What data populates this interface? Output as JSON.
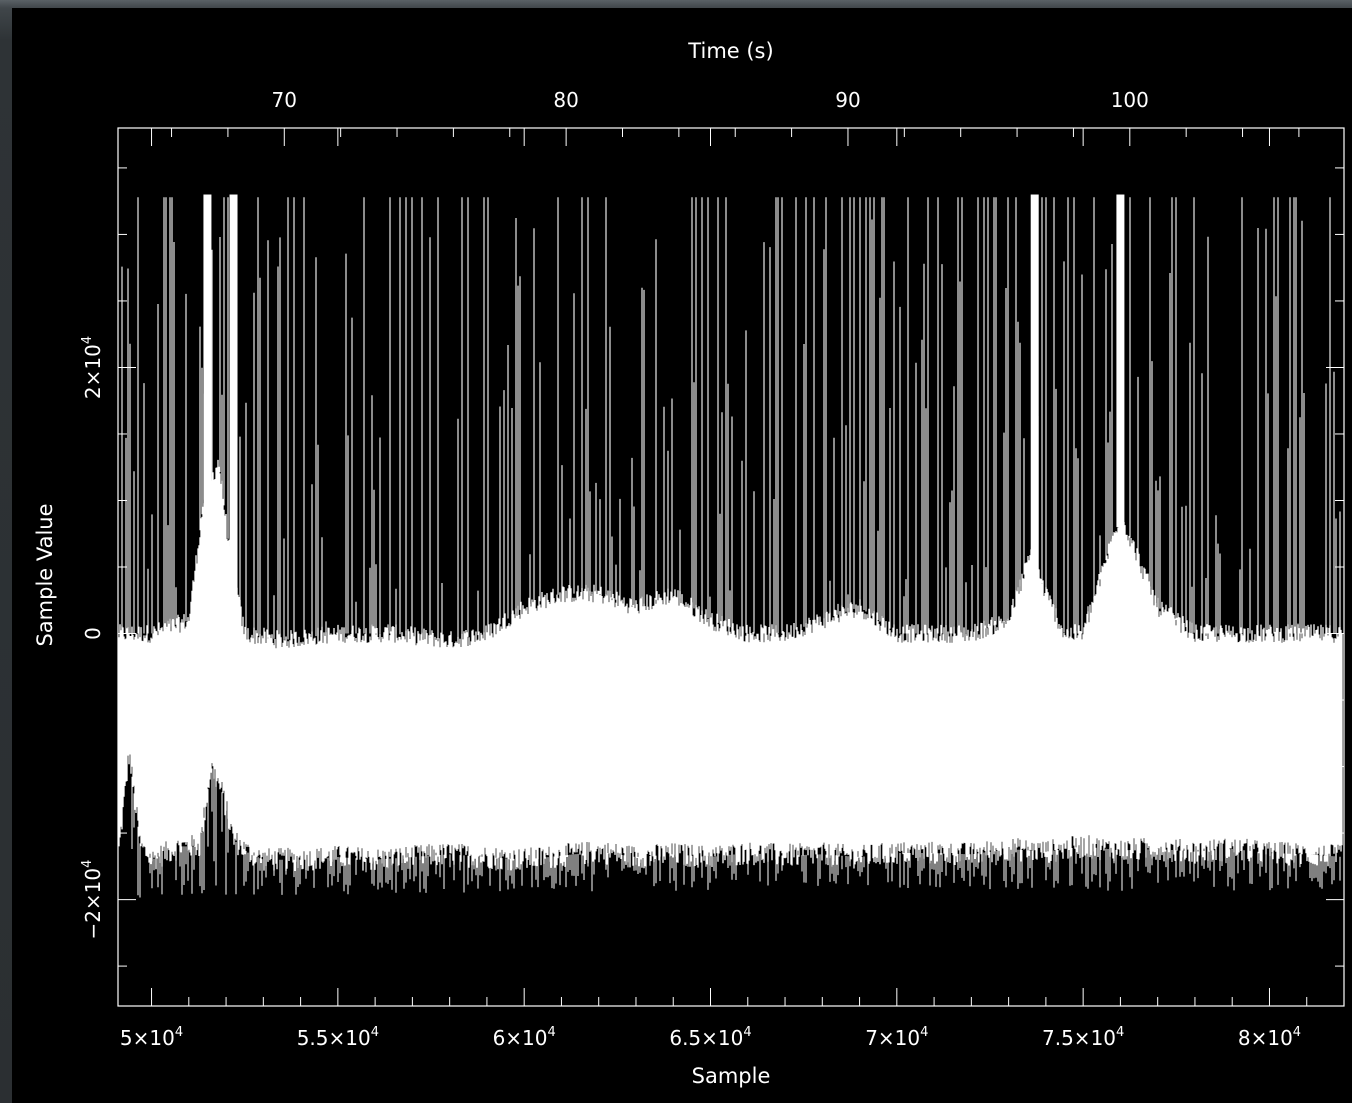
{
  "colors": {
    "background": "#000000",
    "foreground": "#ffffff",
    "frame": "#3c4246"
  },
  "chart_data": {
    "type": "line",
    "title": "",
    "xlabel": "Sample",
    "x2label": "Time (s)",
    "ylabel": "Sample Value",
    "xlim": [
      49100,
      82000
    ],
    "x2lim": [
      64.1,
      107.6
    ],
    "ylim": [
      -28000,
      38000
    ],
    "x_ticks": [
      {
        "value": 50000,
        "mantissa": "5",
        "exp": "4"
      },
      {
        "value": 55000,
        "mantissa": "5.5",
        "exp": "4"
      },
      {
        "value": 60000,
        "mantissa": "6",
        "exp": "4"
      },
      {
        "value": 65000,
        "mantissa": "6.5",
        "exp": "4"
      },
      {
        "value": 70000,
        "mantissa": "7",
        "exp": "4"
      },
      {
        "value": 75000,
        "mantissa": "7.5",
        "exp": "4"
      },
      {
        "value": 80000,
        "mantissa": "8",
        "exp": "4"
      }
    ],
    "x2_ticks": [
      {
        "value": 70,
        "label": "70"
      },
      {
        "value": 80,
        "label": "80"
      },
      {
        "value": 90,
        "label": "90"
      },
      {
        "value": 100,
        "label": "100"
      }
    ],
    "y_ticks": [
      {
        "value": -20000,
        "prefix": "−2",
        "exp": "4"
      },
      {
        "value": 0,
        "prefix": "0",
        "exp": ""
      },
      {
        "value": 20000,
        "prefix": "2",
        "exp": "4"
      }
    ],
    "series": [
      {
        "clip_max": 32800,
        "lower_envelope": [
          [
            49100,
            -17000
          ],
          [
            49400,
            -9000
          ],
          [
            49700,
            -16000
          ],
          [
            50000,
            -17000
          ],
          [
            50400,
            -16500
          ],
          [
            50800,
            -16000
          ],
          [
            51300,
            -16000
          ],
          [
            51600,
            -10000
          ],
          [
            51900,
            -12000
          ],
          [
            52200,
            -15500
          ],
          [
            52600,
            -16500
          ],
          [
            53000,
            -17000
          ],
          [
            54000,
            -17000
          ],
          [
            55000,
            -16800
          ],
          [
            56000,
            -17000
          ],
          [
            57000,
            -16800
          ],
          [
            58000,
            -16600
          ],
          [
            59000,
            -16800
          ],
          [
            60000,
            -17000
          ],
          [
            61000,
            -16700
          ],
          [
            62000,
            -16400
          ],
          [
            63000,
            -16800
          ],
          [
            64000,
            -16600
          ],
          [
            65000,
            -16800
          ],
          [
            66000,
            -16500
          ],
          [
            67000,
            -16700
          ],
          [
            68000,
            -16600
          ],
          [
            69000,
            -16800
          ],
          [
            70000,
            -16500
          ],
          [
            71000,
            -16500
          ],
          [
            72000,
            -16600
          ],
          [
            73000,
            -16200
          ],
          [
            74000,
            -16400
          ],
          [
            75000,
            -16000
          ],
          [
            76000,
            -16300
          ],
          [
            77000,
            -16200
          ],
          [
            78000,
            -16400
          ],
          [
            79000,
            -16200
          ],
          [
            80000,
            -16500
          ],
          [
            81000,
            -16600
          ],
          [
            82000,
            -16800
          ]
        ],
        "upper_envelope": [
          [
            49100,
            0
          ],
          [
            50000,
            0
          ],
          [
            51000,
            1000
          ],
          [
            51400,
            10000
          ],
          [
            51800,
            13000
          ],
          [
            52100,
            6000
          ],
          [
            52500,
            0
          ],
          [
            53500,
            -500
          ],
          [
            55000,
            0
          ],
          [
            56500,
            0
          ],
          [
            58000,
            -500
          ],
          [
            59000,
            0
          ],
          [
            60000,
            2000
          ],
          [
            61000,
            3000
          ],
          [
            62000,
            3000
          ],
          [
            63000,
            2000
          ],
          [
            64000,
            3000
          ],
          [
            65000,
            1000
          ],
          [
            66000,
            0
          ],
          [
            67000,
            0
          ],
          [
            68000,
            1000
          ],
          [
            69000,
            2000
          ],
          [
            70000,
            0
          ],
          [
            71000,
            0
          ],
          [
            72000,
            0
          ],
          [
            73000,
            1000
          ],
          [
            73600,
            6000
          ],
          [
            74000,
            3000
          ],
          [
            74500,
            0
          ],
          [
            75000,
            0
          ],
          [
            76000,
            9000
          ],
          [
            77000,
            2000
          ],
          [
            78000,
            0
          ],
          [
            79000,
            0
          ],
          [
            80000,
            0
          ],
          [
            82000,
            0
          ]
        ],
        "lower_floor": [
          [
            49100,
            -19500
          ],
          [
            52000,
            -19500
          ],
          [
            60000,
            -19200
          ],
          [
            70000,
            -19000
          ],
          [
            82000,
            -19200
          ]
        ]
      }
    ]
  }
}
